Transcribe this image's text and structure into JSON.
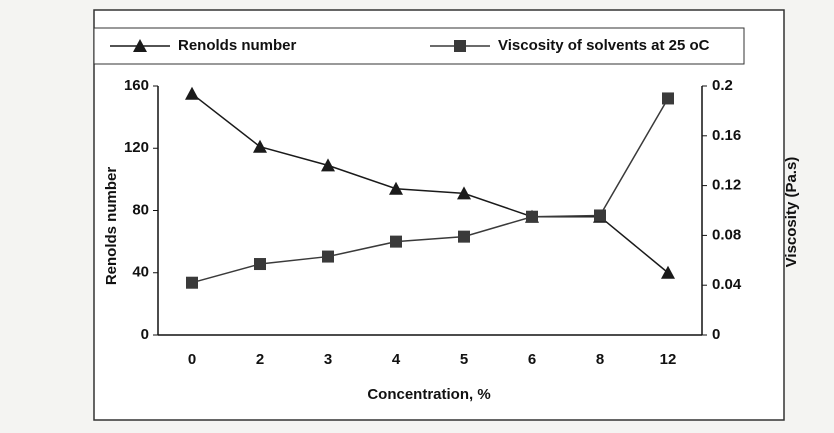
{
  "chart_data": {
    "type": "line",
    "categories": [
      "0",
      "2",
      "3",
      "4",
      "5",
      "6",
      "8",
      "12"
    ],
    "xlabel": "Concentration, %",
    "ylabel": "Renolds number",
    "y2label": "Viscosity (Pa.s)",
    "ylim": [
      0,
      160
    ],
    "yticks": [
      0,
      40,
      80,
      120,
      160
    ],
    "y2lim": [
      0,
      0.2
    ],
    "y2ticks": [
      0,
      0.04,
      0.08,
      0.12,
      0.16,
      0.2
    ],
    "legend": "top",
    "series": [
      {
        "name": "Renolds number",
        "color": "#1a1a1a",
        "marker": "triangle",
        "values": [
          155,
          121,
          109,
          94,
          91,
          76,
          76,
          40
        ]
      },
      {
        "name": "Viscosity of solvents at 25 oC",
        "color": "#3a3a3a",
        "marker": "square",
        "axis": "y2",
        "values": [
          0.042,
          0.057,
          0.063,
          0.075,
          0.079,
          0.095,
          0.096,
          0.19
        ]
      }
    ]
  }
}
